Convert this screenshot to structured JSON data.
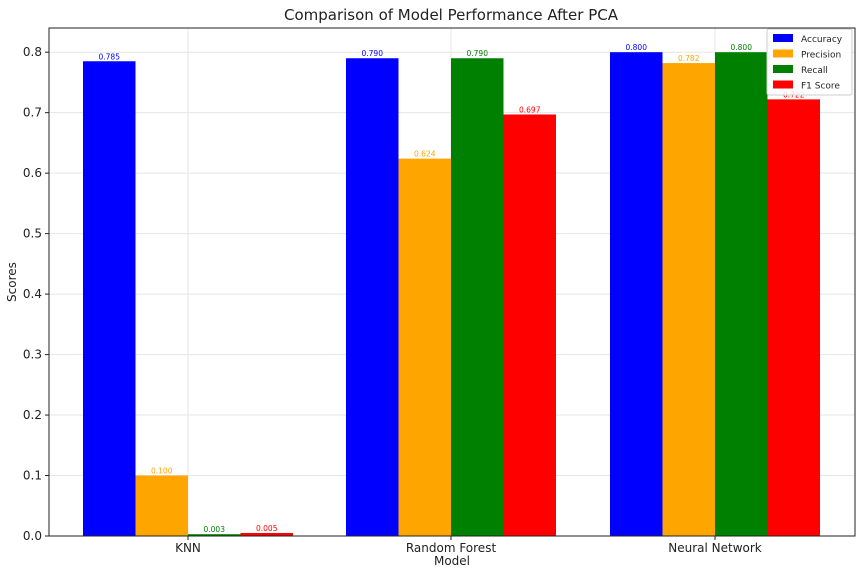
{
  "chart_data": {
    "type": "bar",
    "title": "Comparison of Model Performance After PCA",
    "xlabel": "Model",
    "ylabel": "Scores",
    "categories": [
      "KNN",
      "Random Forest",
      "Neural Network"
    ],
    "ylim": [
      0,
      0.84
    ],
    "yticks": [
      "0.0",
      "0.1",
      "0.2",
      "0.3",
      "0.4",
      "0.5",
      "0.6",
      "0.7",
      "0.8"
    ],
    "grid": true,
    "legend_position": "top-right",
    "series": [
      {
        "name": "Accuracy",
        "color": "#0000ff",
        "values": [
          0.785,
          0.79,
          0.8
        ],
        "labels": [
          "0.785",
          "0.790",
          "0.800"
        ]
      },
      {
        "name": "Precision",
        "color": "#ffa500",
        "values": [
          0.1,
          0.624,
          0.782
        ],
        "labels": [
          "0.100",
          "0.624",
          "0.782"
        ]
      },
      {
        "name": "Recall",
        "color": "#008000",
        "values": [
          0.003,
          0.79,
          0.8
        ],
        "labels": [
          "0.003",
          "0.790",
          "0.800"
        ]
      },
      {
        "name": "F1 Score",
        "color": "#ff0000",
        "values": [
          0.005,
          0.697,
          0.722
        ],
        "labels": [
          "0.005",
          "0.697",
          "0.722"
        ]
      }
    ]
  }
}
